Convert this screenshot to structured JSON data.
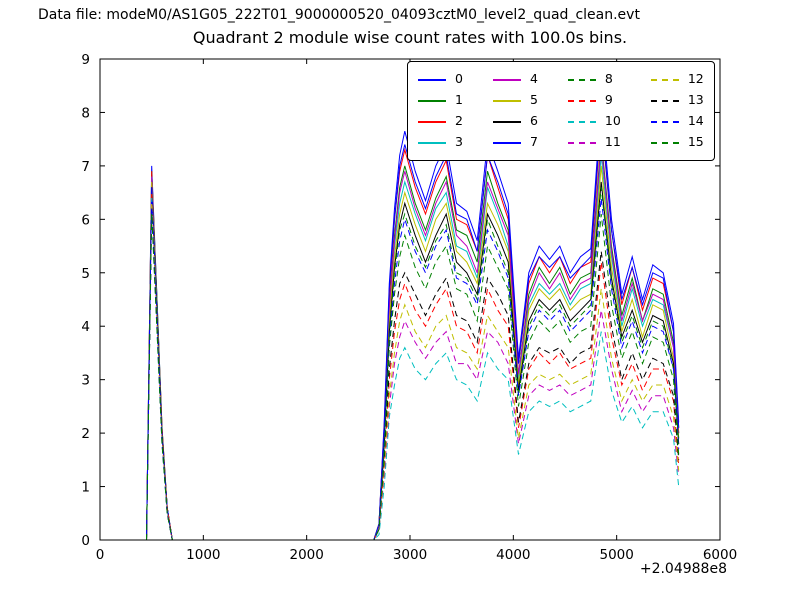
{
  "header": {
    "data_file_label": "Data file: modeM0/AS1G05_222T01_9000000520_04093cztM0_level2_quad_clean.evt"
  },
  "chart_data": {
    "type": "line",
    "title": "Quadrant 2 module wise count rates with 100.0s bins.",
    "xlabel": "",
    "ylabel": "",
    "xlim": [
      0,
      6000
    ],
    "ylim": [
      0,
      9
    ],
    "x_ticks": [
      0,
      1000,
      2000,
      3000,
      4000,
      5000,
      6000
    ],
    "y_ticks": [
      0,
      1,
      2,
      3,
      4,
      5,
      6,
      7,
      8,
      9
    ],
    "x_offset_label": "+2.04988e8",
    "grid": false,
    "legend_position": "upper right",
    "legend_columns": 4,
    "x": [
      450,
      500,
      550,
      600,
      650,
      700,
      2650,
      2700,
      2750,
      2800,
      2850,
      2900,
      2950,
      3050,
      3150,
      3250,
      3350,
      3450,
      3550,
      3650,
      3750,
      3850,
      3950,
      4050,
      4150,
      4250,
      4350,
      4450,
      4550,
      4650,
      4750,
      4850,
      4950,
      5050,
      5150,
      5250,
      5350,
      5450,
      5550,
      5600
    ],
    "series": [
      {
        "name": "0",
        "color": "#0000ff",
        "dash": false,
        "values": [
          0,
          7.0,
          4.6,
          2.1,
          0.6,
          0,
          0,
          0.3,
          2.2,
          4.8,
          6.2,
          7.2,
          7.65,
          6.9,
          6.35,
          7.0,
          7.4,
          6.3,
          6.15,
          5.6,
          7.45,
          6.9,
          6.3,
          3.4,
          5.0,
          5.5,
          5.25,
          5.5,
          5.0,
          5.3,
          5.45,
          8.2,
          6.0,
          4.6,
          5.3,
          4.5,
          5.15,
          5.0,
          4.05,
          2.2
        ]
      },
      {
        "name": "1",
        "color": "#008000",
        "dash": false,
        "values": [
          0,
          6.9,
          4.6,
          2.1,
          0.6,
          0,
          0,
          0.3,
          2.0,
          4.4,
          5.7,
          6.6,
          7.0,
          6.3,
          5.8,
          6.4,
          6.8,
          5.8,
          5.7,
          5.2,
          6.9,
          6.3,
          5.8,
          3.1,
          4.6,
          5.1,
          4.8,
          5.1,
          4.6,
          4.9,
          5.0,
          7.5,
          5.5,
          4.2,
          4.9,
          4.1,
          4.7,
          4.6,
          3.7,
          2.0
        ]
      },
      {
        "name": "2",
        "color": "#ff0000",
        "dash": false,
        "values": [
          0,
          6.9,
          4.5,
          2.1,
          0.6,
          0,
          0,
          0.3,
          2.1,
          4.6,
          6.0,
          6.9,
          7.3,
          6.6,
          6.1,
          6.7,
          7.1,
          6.0,
          5.9,
          5.4,
          7.2,
          6.6,
          6.0,
          3.3,
          4.8,
          5.3,
          5.0,
          5.3,
          4.8,
          5.1,
          5.2,
          7.9,
          5.8,
          4.4,
          5.1,
          4.3,
          4.9,
          4.8,
          3.9,
          2.1
        ]
      },
      {
        "name": "3",
        "color": "#00bfbf",
        "dash": false,
        "values": [
          0,
          6.8,
          4.5,
          2.0,
          0.6,
          0,
          0,
          0.3,
          1.9,
          4.2,
          5.5,
          6.3,
          6.7,
          6.1,
          5.6,
          6.2,
          6.5,
          5.5,
          5.4,
          4.9,
          6.6,
          6.1,
          5.5,
          3.0,
          4.4,
          4.8,
          4.6,
          4.8,
          4.4,
          4.7,
          4.8,
          7.2,
          5.3,
          4.0,
          4.7,
          4.0,
          4.5,
          4.4,
          3.6,
          1.9
        ]
      },
      {
        "name": "4",
        "color": "#bf00bf",
        "dash": false,
        "values": [
          0,
          6.8,
          4.4,
          2.0,
          0.6,
          0,
          0,
          0.3,
          2.0,
          4.3,
          5.6,
          6.5,
          6.9,
          6.2,
          5.7,
          6.3,
          6.7,
          5.7,
          5.5,
          5.0,
          6.7,
          6.2,
          5.7,
          3.1,
          4.5,
          5.0,
          4.7,
          5.0,
          4.5,
          4.8,
          4.9,
          7.4,
          5.4,
          4.1,
          4.8,
          4.1,
          4.6,
          4.5,
          3.6,
          2.0
        ]
      },
      {
        "name": "5",
        "color": "#bfbf00",
        "dash": false,
        "values": [
          0,
          6.7,
          4.4,
          2.0,
          0.6,
          0,
          0,
          0.3,
          1.9,
          4.1,
          5.3,
          6.1,
          6.5,
          5.9,
          5.4,
          6.0,
          6.3,
          5.4,
          5.2,
          4.8,
          6.3,
          5.9,
          5.4,
          2.9,
          4.3,
          4.7,
          4.5,
          4.7,
          4.3,
          4.5,
          4.6,
          7.0,
          5.1,
          3.9,
          4.5,
          3.8,
          4.4,
          4.3,
          3.4,
          1.9
        ]
      },
      {
        "name": "6",
        "color": "#000000",
        "dash": false,
        "values": [
          0,
          6.6,
          4.4,
          2.0,
          0.6,
          0,
          0,
          0.2,
          1.8,
          3.9,
          5.1,
          5.9,
          6.3,
          5.7,
          5.2,
          5.7,
          6.1,
          5.2,
          5.0,
          4.6,
          6.1,
          5.7,
          5.2,
          2.8,
          4.1,
          4.5,
          4.3,
          4.5,
          4.1,
          4.3,
          4.5,
          6.7,
          4.9,
          3.8,
          4.3,
          3.7,
          4.2,
          4.1,
          3.3,
          1.8
        ]
      },
      {
        "name": "7",
        "color": "#0000ff",
        "dash": false,
        "values": [
          0,
          6.6,
          4.3,
          2.0,
          0.6,
          0,
          0,
          0.3,
          2.1,
          4.7,
          6.0,
          7.0,
          7.4,
          6.7,
          6.2,
          6.8,
          7.2,
          6.1,
          6.0,
          5.4,
          7.2,
          6.7,
          6.1,
          3.3,
          4.9,
          5.3,
          5.1,
          5.3,
          4.9,
          5.1,
          5.3,
          8.0,
          5.8,
          4.5,
          5.1,
          4.4,
          5.0,
          4.9,
          3.9,
          2.1
        ]
      },
      {
        "name": "8",
        "color": "#008000",
        "dash": true,
        "values": [
          0,
          6.5,
          4.3,
          2.0,
          0.6,
          0,
          0,
          0.2,
          1.8,
          3.8,
          5.0,
          5.8,
          6.1,
          5.5,
          5.1,
          5.6,
          5.9,
          5.0,
          4.9,
          4.5,
          6.0,
          5.5,
          5.0,
          2.7,
          4.0,
          4.4,
          4.2,
          4.4,
          4.0,
          4.2,
          4.4,
          6.6,
          4.8,
          3.7,
          4.2,
          3.6,
          4.1,
          4.0,
          3.2,
          1.8
        ]
      },
      {
        "name": "9",
        "color": "#ff0000",
        "dash": true,
        "values": [
          0,
          6.5,
          4.2,
          1.9,
          0.6,
          0,
          0,
          0.2,
          1.4,
          3.0,
          3.9,
          4.5,
          4.8,
          4.3,
          4.0,
          4.4,
          4.7,
          4.0,
          3.9,
          3.5,
          4.7,
          4.3,
          4.0,
          2.1,
          3.2,
          3.5,
          3.3,
          3.5,
          3.2,
          3.3,
          3.4,
          5.2,
          3.8,
          2.9,
          3.3,
          2.8,
          3.2,
          3.2,
          2.6,
          1.4
        ]
      },
      {
        "name": "10",
        "color": "#00bfbf",
        "dash": true,
        "values": [
          0,
          6.4,
          4.2,
          1.9,
          0.5,
          0,
          0,
          0.1,
          1.0,
          2.3,
          2.9,
          3.4,
          3.6,
          3.2,
          3.0,
          3.3,
          3.5,
          3.0,
          2.9,
          2.6,
          3.5,
          3.2,
          3.0,
          1.6,
          2.4,
          2.6,
          2.5,
          2.6,
          2.4,
          2.5,
          2.6,
          3.9,
          2.8,
          2.2,
          2.5,
          2.1,
          2.4,
          2.4,
          1.9,
          1.0
        ]
      },
      {
        "name": "11",
        "color": "#bf00bf",
        "dash": true,
        "values": [
          0,
          6.3,
          4.2,
          1.9,
          0.5,
          0,
          0,
          0.2,
          1.2,
          2.5,
          3.3,
          3.8,
          4.1,
          3.7,
          3.4,
          3.7,
          3.9,
          3.3,
          3.3,
          3.0,
          3.9,
          3.7,
          3.3,
          1.8,
          2.7,
          2.9,
          2.8,
          2.9,
          2.7,
          2.8,
          2.9,
          4.3,
          3.2,
          2.4,
          2.8,
          2.4,
          2.7,
          2.7,
          2.1,
          1.2
        ]
      },
      {
        "name": "12",
        "color": "#bfbf00",
        "dash": true,
        "values": [
          0,
          6.3,
          4.1,
          1.9,
          0.5,
          0,
          0,
          0.2,
          1.3,
          2.7,
          3.5,
          4.1,
          4.4,
          3.9,
          3.6,
          4.0,
          4.2,
          3.6,
          3.5,
          3.2,
          4.2,
          3.9,
          3.6,
          1.9,
          2.9,
          3.1,
          3.0,
          3.1,
          2.9,
          3.0,
          3.1,
          4.7,
          3.4,
          2.6,
          3.0,
          2.6,
          2.9,
          2.9,
          2.3,
          1.3
        ]
      },
      {
        "name": "13",
        "color": "#000000",
        "dash": true,
        "values": [
          0,
          6.2,
          4.1,
          1.9,
          0.5,
          0,
          0,
          0.2,
          1.5,
          3.2,
          4.1,
          4.8,
          5.0,
          4.6,
          4.2,
          4.6,
          4.9,
          4.2,
          4.1,
          3.7,
          4.9,
          4.6,
          4.2,
          2.2,
          3.3,
          3.6,
          3.5,
          3.6,
          3.3,
          3.5,
          3.6,
          5.4,
          4.0,
          3.0,
          3.5,
          3.0,
          3.4,
          3.3,
          2.7,
          1.5
        ]
      },
      {
        "name": "14",
        "color": "#0000ff",
        "dash": true,
        "values": [
          0,
          6.2,
          4.0,
          1.8,
          0.5,
          0,
          0,
          0.2,
          1.7,
          3.7,
          4.8,
          5.6,
          6.0,
          5.4,
          5.0,
          5.5,
          5.8,
          4.9,
          4.8,
          4.4,
          5.8,
          5.4,
          4.9,
          2.7,
          3.9,
          4.3,
          4.1,
          4.3,
          3.9,
          4.1,
          4.3,
          6.4,
          4.7,
          3.6,
          4.1,
          3.5,
          4.0,
          3.9,
          3.2,
          1.7
        ]
      },
      {
        "name": "15",
        "color": "#008000",
        "dash": true,
        "values": [
          0,
          6.1,
          4.0,
          1.8,
          0.5,
          0,
          0,
          0.2,
          1.6,
          3.6,
          4.6,
          5.3,
          5.7,
          5.1,
          4.7,
          5.2,
          5.5,
          4.7,
          4.6,
          4.1,
          5.5,
          5.1,
          4.7,
          2.5,
          3.7,
          4.1,
          3.9,
          4.1,
          3.7,
          3.9,
          4.0,
          6.1,
          4.4,
          3.4,
          3.9,
          3.3,
          3.8,
          3.7,
          3.0,
          1.6
        ]
      }
    ]
  }
}
